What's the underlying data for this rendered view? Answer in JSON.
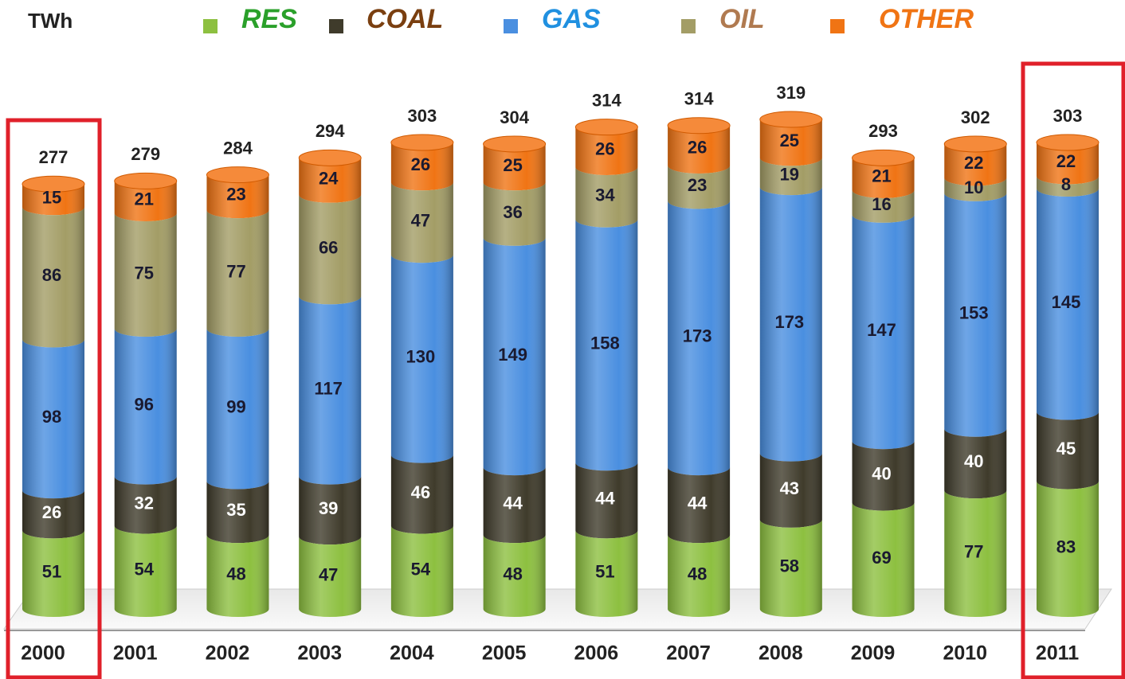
{
  "chart_data": {
    "type": "bar",
    "stacked": true,
    "unit_label": "TWh",
    "categories": [
      "2000",
      "2001",
      "2002",
      "2003",
      "2004",
      "2005",
      "2006",
      "2007",
      "2008",
      "2009",
      "2010",
      "2011"
    ],
    "series": [
      {
        "name": "RES",
        "color": "#8dc040",
        "values": [
          51,
          54,
          48,
          47,
          54,
          48,
          51,
          48,
          58,
          69,
          77,
          83
        ]
      },
      {
        "name": "COAL",
        "color": "#3f3b2b",
        "values": [
          26,
          32,
          35,
          39,
          46,
          44,
          44,
          44,
          43,
          40,
          40,
          45
        ]
      },
      {
        "name": "GAS",
        "color": "#4a8fe0",
        "values": [
          98,
          96,
          99,
          117,
          130,
          149,
          158,
          173,
          173,
          147,
          153,
          145
        ]
      },
      {
        "name": "OIL",
        "color": "#a39d66",
        "values": [
          86,
          75,
          77,
          66,
          47,
          36,
          34,
          23,
          19,
          16,
          10,
          8
        ]
      },
      {
        "name": "OTHER",
        "color": "#f07414",
        "values": [
          15,
          21,
          23,
          24,
          26,
          25,
          26,
          26,
          25,
          21,
          22,
          22
        ]
      }
    ],
    "totals": [
      277,
      279,
      284,
      294,
      303,
      304,
      314,
      314,
      319,
      293,
      302,
      303
    ]
  }
}
